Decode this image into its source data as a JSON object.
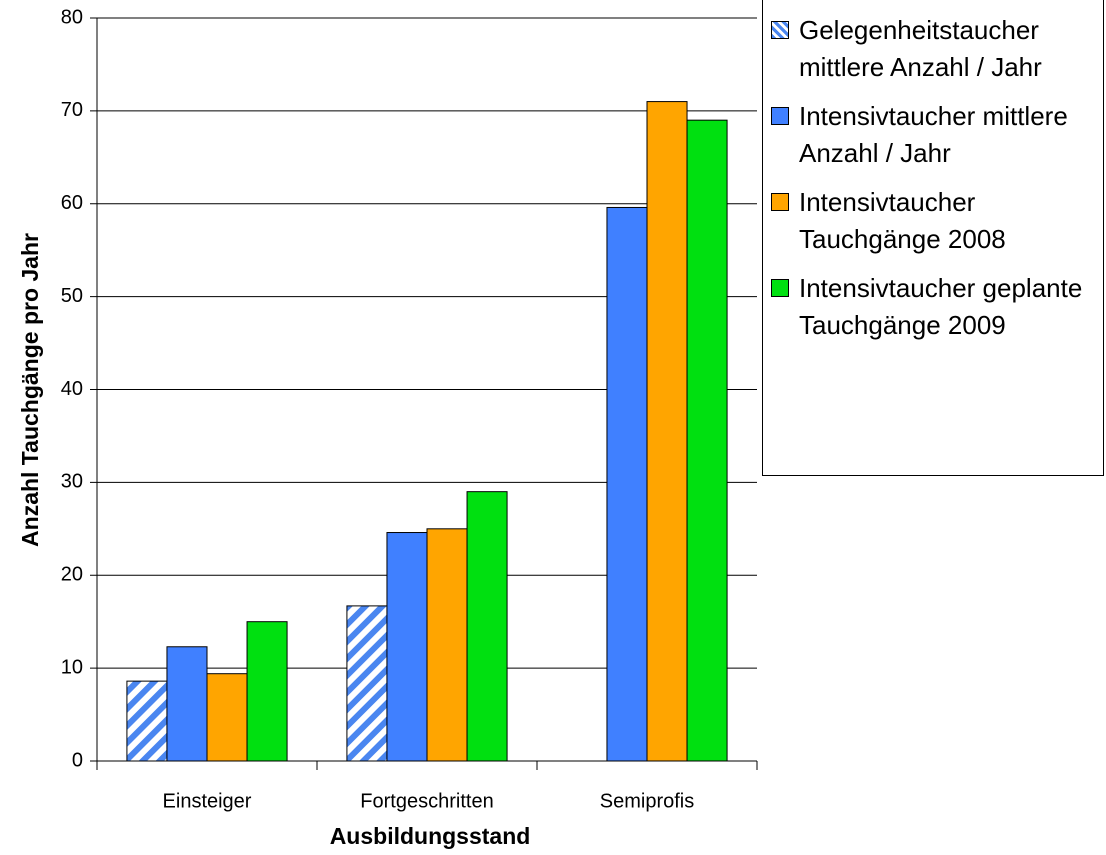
{
  "chart_data": {
    "type": "bar",
    "x_label": "Ausbildungsstand",
    "y_label": "Anzahl Tauchgänge pro Jahr",
    "categories": [
      "Einsteiger",
      "Fortgeschritten",
      "Semiprofis"
    ],
    "series": [
      {
        "name": "Gelegenheitstaucher mittlere Anzahl / Jahr",
        "color": "#4a86f0",
        "hatch": true,
        "values": [
          8.6,
          16.7,
          null
        ]
      },
      {
        "name": "Intensivtaucher mittlere Anzahl / Jahr",
        "color": "#4080ff",
        "values": [
          12.3,
          24.6,
          59.6
        ]
      },
      {
        "name": "Intensivtaucher Tauchgänge 2008",
        "color": "#ffa500",
        "values": [
          9.4,
          25,
          71
        ]
      },
      {
        "name": "Intensivtaucher geplante Tauchgänge 2009",
        "color": "#00e010",
        "values": [
          15,
          29,
          69
        ]
      }
    ],
    "ylim": [
      0,
      80
    ],
    "yticks": [
      0,
      10,
      20,
      30,
      40,
      50,
      60,
      70,
      80
    ],
    "grid": true,
    "legend": "right"
  }
}
